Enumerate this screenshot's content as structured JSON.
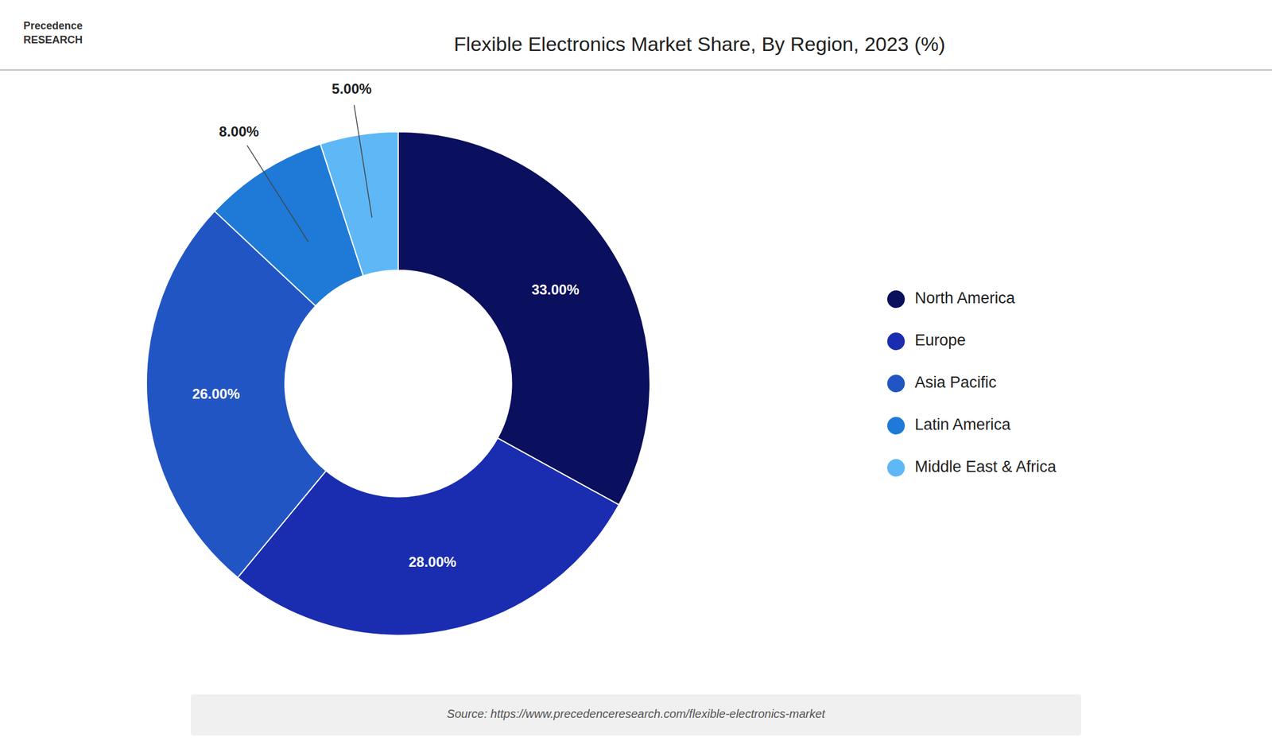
{
  "chart_data": {
    "type": "donut",
    "title": "Flexible Electronics Market Share, By Region, 2023 (%)",
    "categories": [
      "North America",
      "Europe",
      "Asia Pacific",
      "Latin America",
      "Middle East & Africa"
    ],
    "values": [
      33.0,
      28.0,
      26.0,
      8.0,
      5.0
    ],
    "value_labels": [
      "33.00%",
      "28.00%",
      "26.00%",
      "8.00%",
      "5.00%"
    ],
    "colors": [
      "#0a0f5e",
      "#1a2db0",
      "#2255c4",
      "#1e7ad6",
      "#5eb8f5"
    ],
    "data_labels": true,
    "legend": "right",
    "annotations": [
      "Precedence",
      "RESEARCH",
      "Source: https://www.precedenceresearch.com/flexible-electronics-market"
    ]
  }
}
